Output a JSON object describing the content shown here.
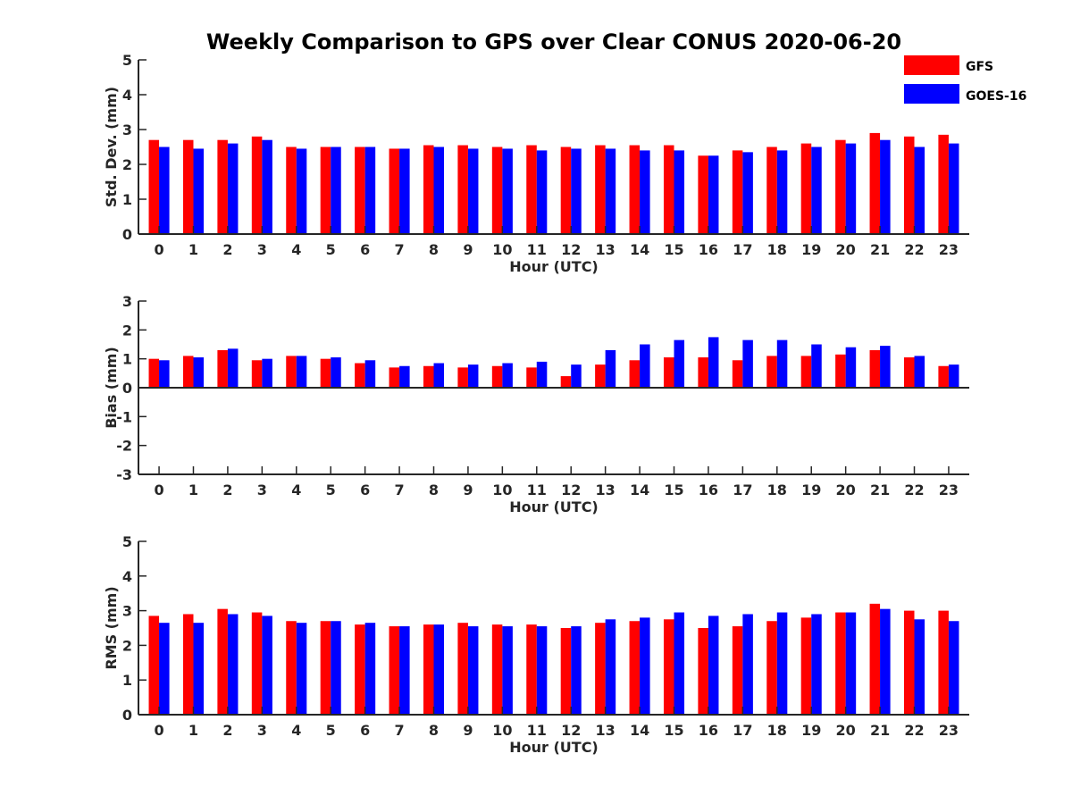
{
  "chart_data": {
    "type": "bar",
    "title": "Weekly Comparison to GPS over Clear CONUS 2020-06-20",
    "legend": {
      "placement": "top-right",
      "entries": [
        "GFS",
        "GOES-16"
      ]
    },
    "colors": {
      "GFS": "#ff0000",
      "GOES-16": "#0000ff"
    },
    "grid": false,
    "panels": [
      {
        "name": "std-dev",
        "xlabel": "Hour (UTC)",
        "ylabel": "Std. Dev. (mm)",
        "ylim": [
          0,
          5
        ],
        "yticks": [
          "0",
          "1",
          "2",
          "3",
          "4",
          "5"
        ],
        "categories": [
          "0",
          "1",
          "2",
          "3",
          "4",
          "5",
          "6",
          "7",
          "8",
          "9",
          "10",
          "11",
          "12",
          "13",
          "14",
          "15",
          "16",
          "17",
          "18",
          "19",
          "20",
          "21",
          "22",
          "23"
        ],
        "series": [
          {
            "name": "GFS",
            "values": [
              2.7,
              2.7,
              2.7,
              2.8,
              2.5,
              2.5,
              2.5,
              2.45,
              2.55,
              2.55,
              2.5,
              2.55,
              2.5,
              2.55,
              2.55,
              2.55,
              2.25,
              2.4,
              2.5,
              2.6,
              2.7,
              2.9,
              2.8,
              2.85
            ]
          },
          {
            "name": "GOES-16",
            "values": [
              2.5,
              2.45,
              2.6,
              2.7,
              2.45,
              2.5,
              2.5,
              2.45,
              2.5,
              2.45,
              2.45,
              2.4,
              2.45,
              2.45,
              2.4,
              2.4,
              2.25,
              2.35,
              2.4,
              2.5,
              2.6,
              2.7,
              2.5,
              2.6
            ]
          }
        ]
      },
      {
        "name": "bias",
        "xlabel": "Hour (UTC)",
        "ylabel": "Bias (mm)",
        "ylim": [
          -3,
          3
        ],
        "yticks": [
          "-3",
          "-2",
          "-1",
          "0",
          "1",
          "2",
          "3"
        ],
        "categories": [
          "0",
          "1",
          "2",
          "3",
          "4",
          "5",
          "6",
          "7",
          "8",
          "9",
          "10",
          "11",
          "12",
          "13",
          "14",
          "15",
          "16",
          "17",
          "18",
          "19",
          "20",
          "21",
          "22",
          "23"
        ],
        "series": [
          {
            "name": "GFS",
            "values": [
              1.0,
              1.1,
              1.3,
              0.95,
              1.1,
              1.0,
              0.85,
              0.7,
              0.75,
              0.7,
              0.75,
              0.7,
              0.4,
              0.8,
              0.95,
              1.05,
              1.05,
              0.95,
              1.1,
              1.1,
              1.15,
              1.3,
              1.05,
              0.75
            ]
          },
          {
            "name": "GOES-16",
            "values": [
              0.95,
              1.05,
              1.35,
              1.0,
              1.1,
              1.05,
              0.95,
              0.75,
              0.85,
              0.8,
              0.85,
              0.9,
              0.8,
              1.3,
              1.5,
              1.65,
              1.75,
              1.65,
              1.65,
              1.5,
              1.4,
              1.45,
              1.1,
              0.8
            ]
          }
        ]
      },
      {
        "name": "rms",
        "xlabel": "Hour (UTC)",
        "ylabel": "RMS (mm)",
        "ylim": [
          0,
          5
        ],
        "yticks": [
          "0",
          "1",
          "2",
          "3",
          "4",
          "5"
        ],
        "categories": [
          "0",
          "1",
          "2",
          "3",
          "4",
          "5",
          "6",
          "7",
          "8",
          "9",
          "10",
          "11",
          "12",
          "13",
          "14",
          "15",
          "16",
          "17",
          "18",
          "19",
          "20",
          "21",
          "22",
          "23"
        ],
        "series": [
          {
            "name": "GFS",
            "values": [
              2.85,
              2.9,
              3.05,
              2.95,
              2.7,
              2.7,
              2.6,
              2.55,
              2.6,
              2.65,
              2.6,
              2.6,
              2.5,
              2.65,
              2.7,
              2.75,
              2.5,
              2.55,
              2.7,
              2.8,
              2.95,
              3.2,
              3.0,
              3.0
            ]
          },
          {
            "name": "GOES-16",
            "values": [
              2.65,
              2.65,
              2.9,
              2.85,
              2.65,
              2.7,
              2.65,
              2.55,
              2.6,
              2.55,
              2.55,
              2.55,
              2.55,
              2.75,
              2.8,
              2.95,
              2.85,
              2.9,
              2.95,
              2.9,
              2.95,
              3.05,
              2.75,
              2.7
            ]
          }
        ]
      }
    ]
  }
}
